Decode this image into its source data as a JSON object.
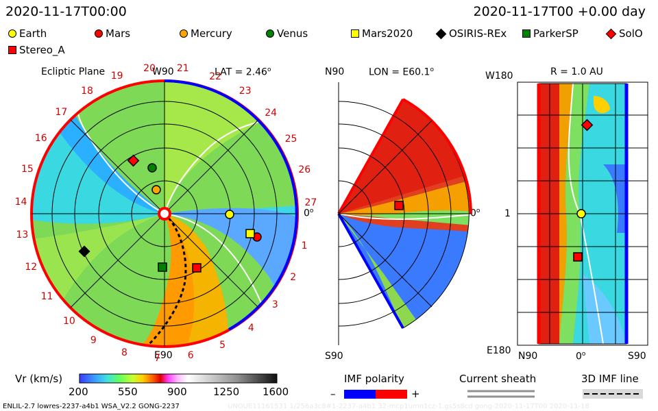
{
  "header": {
    "left_time": "2020-11-17T00:00",
    "right_time": "2020-11-17T00 +0.00 day"
  },
  "legend": [
    {
      "label": "Earth",
      "color": "#ffff00",
      "shape": "circle"
    },
    {
      "label": "Mars",
      "color": "#ff0000",
      "shape": "circle"
    },
    {
      "label": "Mercury",
      "color": "#ffa500",
      "shape": "circle"
    },
    {
      "label": "Venus",
      "color": "#008000",
      "shape": "circle"
    },
    {
      "label": "Mars2020",
      "color": "#ffff00",
      "shape": "square"
    },
    {
      "label": "OSIRIS-REx",
      "color": "#000000",
      "shape": "diamond"
    },
    {
      "label": "ParkerSP",
      "color": "#008000",
      "shape": "square"
    },
    {
      "label": "SolO",
      "color": "#ff0000",
      "shape": "diamond"
    },
    {
      "label": "Stereo_A",
      "color": "#ff0000",
      "shape": "square"
    }
  ],
  "panels": {
    "ecliptic": {
      "title": "Ecliptic Plane",
      "top_label": "W90",
      "lat_label": "LAT = 2.46",
      "bottom_label": "E90",
      "right_label": "0",
      "rotation_numbers": [
        "1",
        "2",
        "3",
        "4",
        "5",
        "6",
        "7",
        "8",
        "9",
        "10",
        "11",
        "12",
        "13",
        "14",
        "15",
        "16",
        "17",
        "18",
        "19",
        "20",
        "21",
        "22",
        "23",
        "24",
        "25",
        "26",
        "27"
      ]
    },
    "meridional": {
      "top_left": "N90",
      "lon_label": "LON = E60.1",
      "bottom_left": "S90",
      "right_label": "0"
    },
    "radial": {
      "r_label": "R = 1.0 AU",
      "top_left": "W180",
      "mid_left": "1",
      "bottom_left": "E180",
      "x_left": "N90",
      "x_mid": "0",
      "x_right": "S90"
    }
  },
  "colorbar": {
    "label": "Vr (km/s)",
    "ticks": [
      "200",
      "550",
      "900",
      "1250",
      "1600"
    ]
  },
  "imf": {
    "title": "IMF polarity",
    "minus": "–",
    "plus": "+",
    "sheath": "Current sheath",
    "line": "3D IMF line"
  },
  "footer": {
    "left": "ENLIL-2.7 lowres-2237-a4b1 WSA_V2.2 GONG-2237",
    "right": "UNOUE11161531 1/256a3c8#1-2237-a4b1 32-mcp1umn1cz-1.gs5s8cd gong-2020-11-17T00  2020-11-18"
  }
}
